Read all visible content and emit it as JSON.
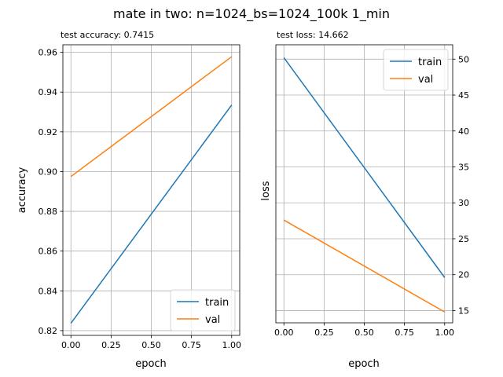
{
  "figure": {
    "suptitle": "mate in two: n=1024_bs=1024_100k 1_min"
  },
  "colors": {
    "train": "#1f77b4",
    "val": "#ff7f0e",
    "grid": "#b0b0b0",
    "axes": "#000000"
  },
  "chart_data": [
    {
      "type": "line",
      "title": "test accuracy: 0.7415",
      "xlabel": "epoch",
      "ylabel": "accuracy",
      "xlim": [
        -0.05,
        1.05
      ],
      "ylim": [
        0.8176,
        0.9638
      ],
      "xticks": [
        0.0,
        0.25,
        0.5,
        0.75,
        1.0
      ],
      "xtick_labels": [
        "0.00",
        "0.25",
        "0.50",
        "0.75",
        "1.00"
      ],
      "yticks": [
        0.82,
        0.84,
        0.86,
        0.88,
        0.9,
        0.92,
        0.94,
        0.96
      ],
      "ytick_labels": [
        "0.82",
        "0.84",
        "0.86",
        "0.88",
        "0.90",
        "0.92",
        "0.94",
        "0.96"
      ],
      "y_axis_side": "left",
      "grid": true,
      "legend_position": "lower-right",
      "series": [
        {
          "name": "train",
          "x": [
            0,
            1
          ],
          "values": [
            0.8237,
            0.9335
          ]
        },
        {
          "name": "val",
          "x": [
            0,
            1
          ],
          "values": [
            0.8975,
            0.9578
          ]
        }
      ]
    },
    {
      "type": "line",
      "title": "test loss: 14.662",
      "xlabel": "epoch",
      "ylabel": "loss",
      "xlim": [
        -0.05,
        1.05
      ],
      "ylim": [
        13.3,
        52.0
      ],
      "xticks": [
        0.0,
        0.25,
        0.5,
        0.75,
        1.0
      ],
      "xtick_labels": [
        "0.00",
        "0.25",
        "0.50",
        "0.75",
        "1.00"
      ],
      "yticks": [
        15,
        20,
        25,
        30,
        35,
        40,
        45,
        50
      ],
      "ytick_labels": [
        "15",
        "20",
        "25",
        "30",
        "35",
        "40",
        "45",
        "50"
      ],
      "y_axis_side": "right",
      "grid": true,
      "legend_position": "upper-right",
      "series": [
        {
          "name": "train",
          "x": [
            0,
            1
          ],
          "values": [
            50.2,
            19.6
          ]
        },
        {
          "name": "val",
          "x": [
            0,
            1
          ],
          "values": [
            27.6,
            14.8
          ]
        }
      ]
    }
  ]
}
